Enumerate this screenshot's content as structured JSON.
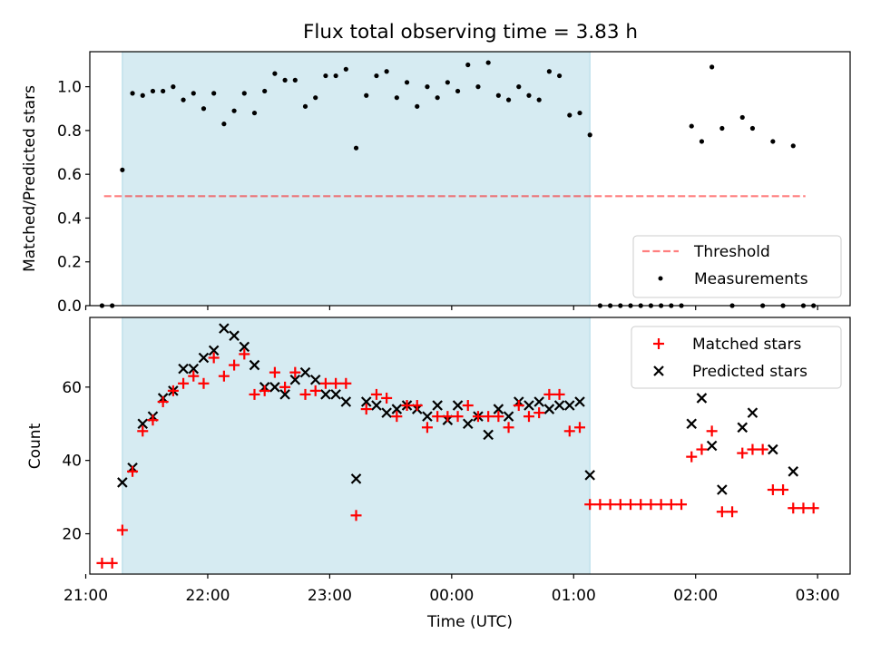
{
  "title": "Flux total observing time = 3.83 h",
  "colors": {
    "highlight": "#add8e6",
    "threshold": "#ff0000",
    "measurement": "#000000",
    "matched": "#ff0000",
    "predicted": "#000000"
  },
  "chart_data": [
    {
      "type": "scatter",
      "ylabel": "Matched/Predicted stars",
      "ylim": [
        0,
        1.16
      ],
      "yticks": [
        0.0,
        0.2,
        0.4,
        0.6,
        0.8,
        1.0
      ],
      "ytick_labels": [
        "0.0",
        "0.2",
        "0.4",
        "0.6",
        "0.8",
        "1.0"
      ],
      "xlim": [
        "21:02",
        "03:16"
      ],
      "highlight_span": [
        "21:18",
        "01:08"
      ],
      "legend": {
        "position": "lower-right",
        "entries": [
          "Threshold",
          "Measurements"
        ]
      },
      "threshold": {
        "name": "Threshold",
        "y": 0.5,
        "x_range": [
          "21:09",
          "02:54"
        ]
      },
      "measurements": {
        "name": "Measurements",
        "x": [
          "21:08",
          "21:13",
          "21:18",
          "21:23",
          "21:28",
          "21:33",
          "21:38",
          "21:43",
          "21:48",
          "21:53",
          "21:58",
          "22:03",
          "22:08",
          "22:13",
          "22:18",
          "22:23",
          "22:28",
          "22:33",
          "22:38",
          "22:43",
          "22:48",
          "22:53",
          "22:58",
          "23:03",
          "23:08",
          "23:13",
          "23:18",
          "23:23",
          "23:28",
          "23:33",
          "23:38",
          "23:43",
          "23:48",
          "23:53",
          "23:58",
          "00:03",
          "00:08",
          "00:13",
          "00:18",
          "00:23",
          "00:28",
          "00:33",
          "00:38",
          "00:43",
          "00:48",
          "00:53",
          "00:58",
          "01:03",
          "01:08",
          "01:13",
          "01:18",
          "01:23",
          "01:28",
          "01:33",
          "01:38",
          "01:43",
          "01:48",
          "01:53",
          "01:58",
          "02:03",
          "02:08",
          "02:13",
          "02:18",
          "02:23",
          "02:28",
          "02:33",
          "02:38",
          "02:43",
          "02:48",
          "02:53",
          "02:58"
        ],
        "y": [
          0.0,
          0.0,
          0.62,
          0.97,
          0.96,
          0.98,
          0.98,
          1.0,
          0.94,
          0.97,
          0.9,
          0.97,
          0.83,
          0.89,
          0.97,
          0.88,
          0.98,
          1.06,
          1.03,
          1.03,
          0.91,
          0.95,
          1.05,
          1.05,
          1.08,
          0.72,
          0.96,
          1.05,
          1.07,
          0.95,
          1.02,
          0.91,
          1.0,
          0.95,
          1.02,
          0.98,
          1.1,
          1.0,
          1.11,
          0.96,
          0.94,
          1.0,
          0.96,
          0.94,
          1.07,
          1.05,
          0.87,
          0.88,
          0.78,
          0.0,
          0.0,
          0.0,
          0.0,
          0.0,
          0.0,
          0.0,
          0.0,
          0.0,
          0.82,
          0.75,
          1.09,
          0.81,
          0.0,
          0.86,
          0.81,
          0.0,
          0.75,
          0.0,
          0.73,
          0.0,
          0.0
        ]
      }
    },
    {
      "type": "scatter",
      "ylabel": "Count",
      "xlabel": "Time (UTC)",
      "ylim": [
        9,
        79
      ],
      "yticks": [
        20,
        40,
        60
      ],
      "ytick_labels": [
        "20",
        "40",
        "60"
      ],
      "xlim": [
        "21:02",
        "03:16"
      ],
      "xticks": [
        "21:00",
        "22:00",
        "23:00",
        "00:00",
        "01:00",
        "02:00",
        "03:00"
      ],
      "xtick_labels": [
        "21:00",
        "22:00",
        "23:00",
        "00:00",
        "01:00",
        "02:00",
        "03:00"
      ],
      "highlight_span": [
        "21:18",
        "01:08"
      ],
      "legend": {
        "position": "upper-right",
        "entries": [
          "Matched stars",
          "Predicted stars"
        ]
      },
      "matched": {
        "name": "Matched stars",
        "x": [
          "21:08",
          "21:13",
          "21:18",
          "21:23",
          "21:28",
          "21:33",
          "21:38",
          "21:43",
          "21:48",
          "21:53",
          "21:58",
          "22:03",
          "22:08",
          "22:13",
          "22:18",
          "22:23",
          "22:28",
          "22:33",
          "22:38",
          "22:43",
          "22:48",
          "22:53",
          "22:58",
          "23:03",
          "23:08",
          "23:13",
          "23:18",
          "23:23",
          "23:28",
          "23:33",
          "23:38",
          "23:43",
          "23:48",
          "23:53",
          "23:58",
          "00:03",
          "00:08",
          "00:13",
          "00:18",
          "00:23",
          "00:28",
          "00:33",
          "00:38",
          "00:43",
          "00:48",
          "00:53",
          "00:58",
          "01:03",
          "01:08",
          "01:13",
          "01:18",
          "01:23",
          "01:28",
          "01:33",
          "01:38",
          "01:43",
          "01:48",
          "01:53",
          "01:58",
          "02:03",
          "02:08",
          "02:13",
          "02:18",
          "02:23",
          "02:28",
          "02:33",
          "02:38",
          "02:43",
          "02:48",
          "02:53",
          "02:58"
        ],
        "y": [
          12,
          12,
          21,
          37,
          48,
          51,
          56,
          59,
          61,
          63,
          61,
          68,
          63,
          66,
          69,
          58,
          59,
          64,
          60,
          64,
          58,
          59,
          61,
          61,
          61,
          25,
          54,
          58,
          57,
          52,
          55,
          55,
          49,
          52,
          52,
          52,
          55,
          52,
          52,
          52,
          49,
          55,
          52,
          53,
          58,
          58,
          48,
          49,
          28,
          28,
          28,
          28,
          28,
          28,
          28,
          28,
          28,
          28,
          41,
          43,
          48,
          26,
          26,
          42,
          43,
          43,
          32,
          32,
          27,
          27,
          27
        ]
      },
      "predicted": {
        "name": "Predicted stars",
        "x": [
          "21:18",
          "21:23",
          "21:28",
          "21:33",
          "21:38",
          "21:43",
          "21:48",
          "21:53",
          "21:58",
          "22:03",
          "22:08",
          "22:13",
          "22:18",
          "22:23",
          "22:28",
          "22:33",
          "22:38",
          "22:43",
          "22:48",
          "22:53",
          "22:58",
          "23:03",
          "23:08",
          "23:13",
          "23:18",
          "23:23",
          "23:28",
          "23:33",
          "23:38",
          "23:43",
          "23:48",
          "23:53",
          "23:58",
          "00:03",
          "00:08",
          "00:13",
          "00:18",
          "00:23",
          "00:28",
          "00:33",
          "00:38",
          "00:43",
          "00:48",
          "00:53",
          "00:58",
          "01:03",
          "01:08",
          "01:58",
          "02:03",
          "02:08",
          "02:13",
          "02:23",
          "02:28",
          "02:38",
          "02:48"
        ],
        "y": [
          34,
          38,
          50,
          52,
          57,
          59,
          65,
          65,
          68,
          70,
          76,
          74,
          71,
          66,
          60,
          60,
          58,
          62,
          64,
          62,
          58,
          58,
          56,
          35,
          56,
          55,
          53,
          54,
          55,
          54,
          52,
          55,
          51,
          55,
          50,
          52,
          47,
          54,
          52,
          56,
          55,
          56,
          54,
          55,
          55,
          56,
          36,
          50,
          57,
          44,
          32,
          49,
          53,
          43,
          37
        ]
      }
    }
  ]
}
